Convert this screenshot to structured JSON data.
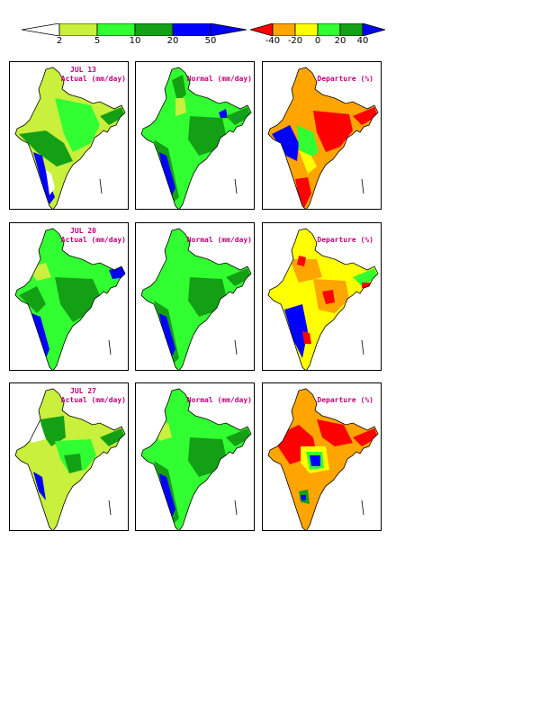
{
  "legend_rain": {
    "ticks": [
      "2",
      "5",
      "10",
      "20",
      "50"
    ],
    "colors": [
      "#ffffff",
      "#c8f03c",
      "#32ff32",
      "#14a014",
      "#0000ff"
    ]
  },
  "legend_departure": {
    "ticks": [
      "-40",
      "-20",
      "0",
      "20",
      "40"
    ],
    "colors": [
      "#ff0000",
      "#ffa500",
      "#ffff00",
      "#32ff32",
      "#14a014",
      "#0000ff"
    ]
  },
  "rows": [
    {
      "date": "JUL 13",
      "actual_label": "Actual (mm/day)",
      "normal_label": "Normal (mm/day)",
      "departure_label": "Departure (%)"
    },
    {
      "date": "JUL 20",
      "actual_label": "Actual (mm/day)",
      "normal_label": "Normal (mm/day)",
      "departure_label": "Departure (%)"
    },
    {
      "date": "JUL 27",
      "actual_label": "Actual (mm/day)",
      "normal_label": "Normal (mm/day)",
      "departure_label": "Departure (%)"
    }
  ],
  "colors": {
    "title": "#c0007a",
    "lightgreen": "#c8f03c",
    "green": "#32ff32",
    "darkgreen": "#14a014",
    "blue": "#0000ff",
    "orange": "#ffa500",
    "yellow": "#ffff00",
    "red": "#ff0000"
  }
}
